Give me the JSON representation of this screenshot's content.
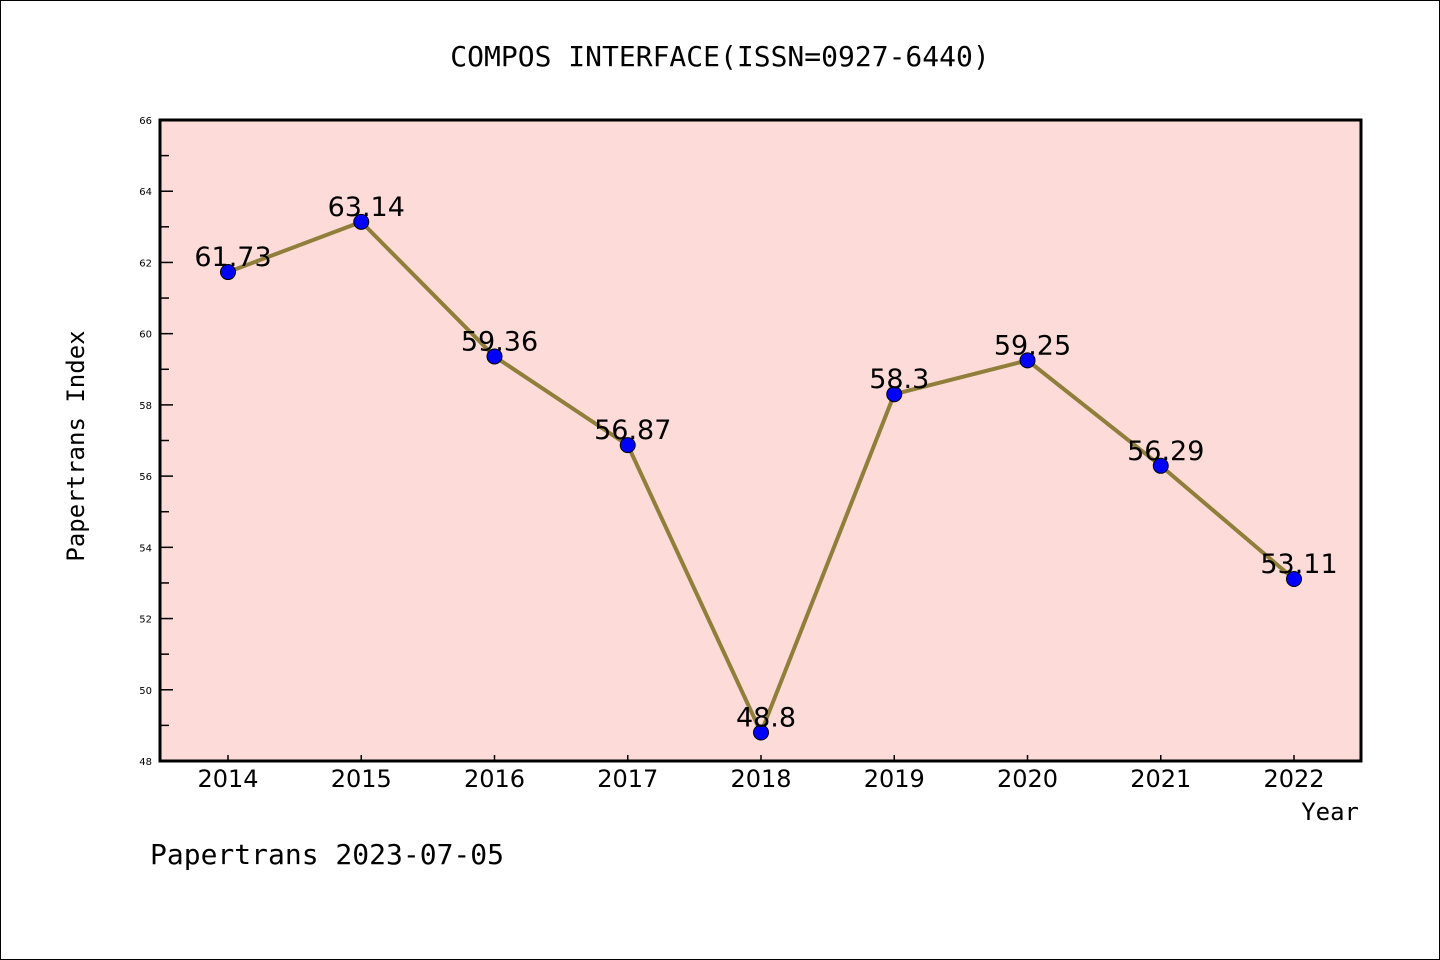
{
  "chart_data": {
    "type": "line",
    "title": "COMPOS INTERFACE(ISSN=0927-6440)",
    "xlabel": "Year",
    "ylabel": "Papertrans Index",
    "categories": [
      "2014",
      "2015",
      "2016",
      "2017",
      "2018",
      "2019",
      "2020",
      "2021",
      "2022"
    ],
    "series": [
      {
        "name": "Papertrans Index",
        "values": [
          61.73,
          63.14,
          59.36,
          56.87,
          48.8,
          58.3,
          59.25,
          56.29,
          53.11
        ]
      }
    ],
    "data_labels": [
      "61.73",
      "63.14",
      "59.36",
      "56.87",
      "48.8",
      "58.3",
      "59.25",
      "56.29",
      "53.11"
    ],
    "ylim": [
      48,
      66
    ],
    "yticks": [
      48,
      50,
      52,
      54,
      56,
      58,
      60,
      62,
      64,
      66
    ],
    "grid": false,
    "legend": "none",
    "footer": "Papertrans 2023-07-05",
    "colors": {
      "background": "#fddbd8",
      "line": "#8f7f3a",
      "marker": "#0000ff"
    }
  }
}
